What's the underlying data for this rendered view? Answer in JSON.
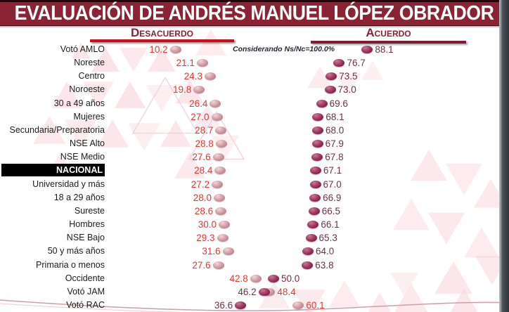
{
  "title": "EVALUACIÓN DE ANDRÉS MANUEL LÓPEZ OBRADOR",
  "columns": {
    "left": "Desacuerdo",
    "right": "Acuerdo"
  },
  "note": "Considerando Ns/Nc=100.0%",
  "colors": {
    "title_band": "#8a2334",
    "header_text": "#8e1f35",
    "left_rule": "#c4121a",
    "right_rule": "#7c1f30",
    "desacuerdo_value": "#e7362f",
    "acuerdo_value": "#6e3247",
    "desacuerdo_marker": "#c9949c",
    "acuerdo_marker": "#8d2148",
    "highlight_bg": "#000000",
    "highlight_text": "#ffffff"
  },
  "chart_data": {
    "type": "scatter",
    "subtype": "horizontal-dot-plot",
    "x_range": [
      0,
      100
    ],
    "legend_position": "top",
    "series_names": [
      "Desacuerdo",
      "Acuerdo"
    ],
    "note": "Considerando Ns/Nc=100.0%",
    "highlight_row": "NACIONAL",
    "rows": [
      {
        "category": "Votó AMLO",
        "desacuerdo": 10.2,
        "acuerdo": 88.1
      },
      {
        "category": "Noreste",
        "desacuerdo": 21.1,
        "acuerdo": 76.7
      },
      {
        "category": "Centro",
        "desacuerdo": 24.3,
        "acuerdo": 73.5
      },
      {
        "category": "Noroeste",
        "desacuerdo": 19.8,
        "acuerdo": 73.0
      },
      {
        "category": "30 a 49 años",
        "desacuerdo": 26.4,
        "acuerdo": 69.6
      },
      {
        "category": "Mujeres",
        "desacuerdo": 27.0,
        "acuerdo": 68.1
      },
      {
        "category": "Secundaria/Preparatoria",
        "desacuerdo": 28.7,
        "acuerdo": 68.0
      },
      {
        "category": "NSE Alto",
        "desacuerdo": 28.8,
        "acuerdo": 67.9
      },
      {
        "category": "NSE Medio",
        "desacuerdo": 27.6,
        "acuerdo": 67.8
      },
      {
        "category": "NACIONAL",
        "desacuerdo": 28.4,
        "acuerdo": 67.1,
        "highlight": true
      },
      {
        "category": "Universidad y más",
        "desacuerdo": 27.2,
        "acuerdo": 67.0
      },
      {
        "category": "18 a 29 años",
        "desacuerdo": 28.0,
        "acuerdo": 66.9
      },
      {
        "category": "Sureste",
        "desacuerdo": 28.6,
        "acuerdo": 66.5
      },
      {
        "category": "Hombres",
        "desacuerdo": 30.0,
        "acuerdo": 66.1
      },
      {
        "category": "NSE Bajo",
        "desacuerdo": 29.3,
        "acuerdo": 65.3
      },
      {
        "category": "50 y más años",
        "desacuerdo": 31.6,
        "acuerdo": 64.0
      },
      {
        "category": "Primaria o menos",
        "desacuerdo": 27.6,
        "acuerdo": 63.8
      },
      {
        "category": "Occidente",
        "desacuerdo": 42.8,
        "acuerdo": 50.0
      },
      {
        "category": "Votó JAM",
        "desacuerdo": 48.4,
        "acuerdo": 46.2
      },
      {
        "category": "Votó RAC",
        "desacuerdo": 60.1,
        "acuerdo": 36.6
      }
    ]
  }
}
